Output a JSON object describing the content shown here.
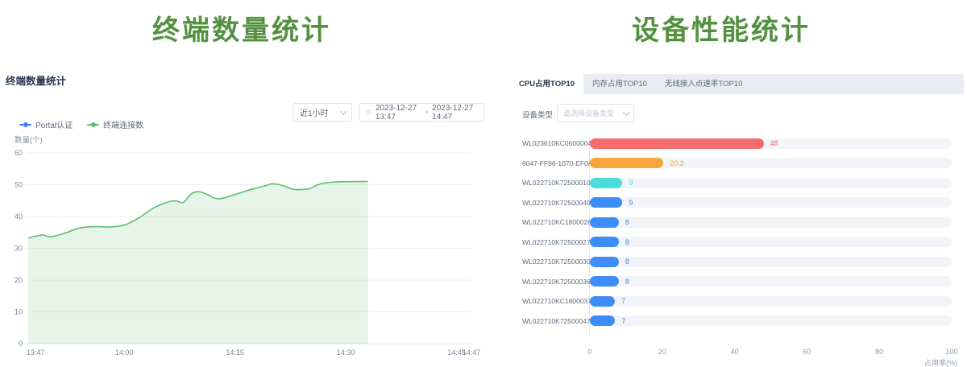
{
  "page": {
    "left_title": "终端数量统计",
    "right_title": "设备性能统计"
  },
  "left_panel": {
    "title": "终端数量统计",
    "range_select": {
      "value": "近1小时"
    },
    "date_range": {
      "start": "2023-12-27 13:47",
      "separator": "-",
      "end": "2023-12-27 14:47"
    },
    "legend": [
      {
        "label": "Portal认证",
        "color": "#3d7fff"
      },
      {
        "label": "终端连接数",
        "color": "#5cbf6e"
      }
    ]
  },
  "right_panel": {
    "tabs": [
      {
        "label": "CPU占用TOP10",
        "active": true
      },
      {
        "label": "内存占用TOP10",
        "active": false
      },
      {
        "label": "无线接入点速率TOP10",
        "active": false
      }
    ],
    "filter": {
      "label": "设备类型",
      "placeholder": "请选择设备类型"
    }
  },
  "chart_data": [
    {
      "type": "area",
      "title": "终端数量统计",
      "ylabel": "数量(个)",
      "ylim": [
        0,
        60
      ],
      "y_ticks": [
        0,
        10,
        20,
        30,
        40,
        50,
        60
      ],
      "x_start": "13:47",
      "x_end": "14:47",
      "x_ticks": [
        "13:47",
        "14:00",
        "14:15",
        "14:30",
        "14:45",
        "14:47"
      ],
      "grid": true,
      "legend_position": "top-left",
      "series": [
        {
          "name": "Portal认证",
          "color": "#3d7fff",
          "points": []
        },
        {
          "name": "终端连接数",
          "color": "#5cbf6e",
          "fill_opacity": 0.15,
          "points": [
            [
              "13:47",
              33.2
            ],
            [
              "13:48",
              33.8
            ],
            [
              "13:49",
              34.2
            ],
            [
              "13:50",
              33.6
            ],
            [
              "13:52",
              34.8
            ],
            [
              "13:54",
              36.4
            ],
            [
              "13:56",
              36.8
            ],
            [
              "13:58",
              36.7
            ],
            [
              "14:00",
              37.3
            ],
            [
              "14:02",
              39.6
            ],
            [
              "14:04",
              42.7
            ],
            [
              "14:06",
              44.6
            ],
            [
              "14:07",
              44.9
            ],
            [
              "14:08",
              44.4
            ],
            [
              "14:09",
              47.0
            ],
            [
              "14:10",
              47.8
            ],
            [
              "14:11",
              47.2
            ],
            [
              "14:12",
              46.0
            ],
            [
              "14:13",
              45.6
            ],
            [
              "14:15",
              46.9
            ],
            [
              "14:17",
              48.4
            ],
            [
              "14:19",
              49.6
            ],
            [
              "14:20",
              50.3
            ],
            [
              "14:21",
              50.0
            ],
            [
              "14:22",
              49.3
            ],
            [
              "14:23",
              48.5
            ],
            [
              "14:25",
              48.7
            ],
            [
              "14:26",
              49.8
            ],
            [
              "14:27",
              50.5
            ],
            [
              "14:29",
              50.9
            ],
            [
              "14:33",
              51.0
            ]
          ]
        }
      ]
    },
    {
      "type": "bar",
      "orientation": "horizontal",
      "title": "CPU占用TOP10",
      "xlabel": "占用率(%)",
      "xlim": [
        0,
        100
      ],
      "x_ticks": [
        0,
        20,
        40,
        60,
        80,
        100
      ],
      "categories": [
        "WL023610KC06000043",
        "6047-FF96-1070-EF0A",
        "WL022710K725000102",
        "WL022710K725000409",
        "WL022710KC18000280",
        "WL022710K725000272",
        "WL022710K725000307",
        "WL022710K725000369",
        "WL022710KC18000372",
        "WL022710K725000470"
      ],
      "values": [
        48,
        20.3,
        9,
        9,
        8,
        8,
        8,
        8,
        7,
        7
      ],
      "value_labels": [
        "48",
        "20.3",
        "9",
        "9",
        "8",
        "8",
        "8",
        "8",
        "7",
        "7"
      ],
      "colors": [
        "#f56c6c",
        "#f5a73b",
        "#4edbde",
        "#3d8cf7",
        "#3d8cf7",
        "#3d8cf7",
        "#3d8cf7",
        "#3d8cf7",
        "#3d8cf7",
        "#3d8cf7"
      ]
    }
  ]
}
